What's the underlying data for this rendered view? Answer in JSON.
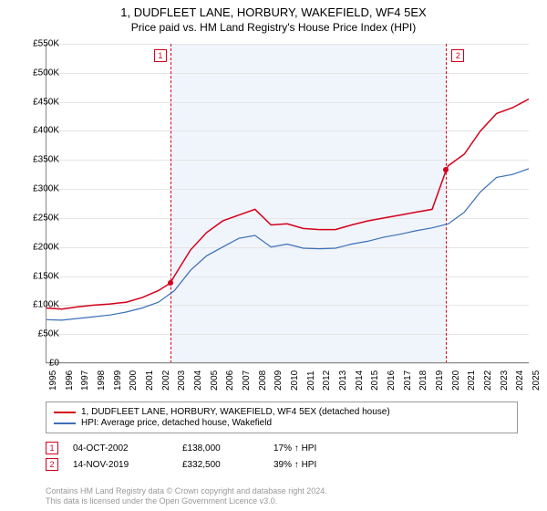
{
  "title": "1, DUDFLEET LANE, HORBURY, WAKEFIELD, WF4 5EX",
  "subtitle": "Price paid vs. HM Land Registry's House Price Index (HPI)",
  "chart": {
    "type": "line",
    "background_color": "#ffffff",
    "grid_color": "#e5e5e5",
    "shaded_color": "#f0f4fb",
    "axis_color": "#888888",
    "ylim": [
      0,
      550000
    ],
    "ytick_step": 50000,
    "ytick_labels": [
      "£0",
      "£50K",
      "£100K",
      "£150K",
      "£200K",
      "£250K",
      "£300K",
      "£350K",
      "£400K",
      "£450K",
      "£500K",
      "£550K"
    ],
    "xlim": [
      1995,
      2025
    ],
    "xtick_labels": [
      "1995",
      "1996",
      "1997",
      "1998",
      "1999",
      "2000",
      "2001",
      "2002",
      "2003",
      "2004",
      "2005",
      "2006",
      "2007",
      "2008",
      "2009",
      "2010",
      "2011",
      "2012",
      "2013",
      "2014",
      "2015",
      "2016",
      "2017",
      "2018",
      "2019",
      "2020",
      "2021",
      "2022",
      "2023",
      "2024",
      "2025"
    ],
    "series": [
      {
        "name": "property",
        "label": "1, DUDFLEET LANE, HORBURY, WAKEFIELD, WF4 5EX (detached house)",
        "color": "#d4001a",
        "line_width": 1.5,
        "data": [
          [
            1995,
            95000
          ],
          [
            1996,
            93000
          ],
          [
            1997,
            97000
          ],
          [
            1998,
            100000
          ],
          [
            1999,
            102000
          ],
          [
            2000,
            105000
          ],
          [
            2001,
            113000
          ],
          [
            2002,
            125000
          ],
          [
            2002.75,
            138000
          ],
          [
            2003,
            150000
          ],
          [
            2004,
            195000
          ],
          [
            2005,
            225000
          ],
          [
            2006,
            245000
          ],
          [
            2007,
            255000
          ],
          [
            2008,
            265000
          ],
          [
            2009,
            238000
          ],
          [
            2010,
            240000
          ],
          [
            2011,
            232000
          ],
          [
            2012,
            230000
          ],
          [
            2013,
            230000
          ],
          [
            2014,
            238000
          ],
          [
            2015,
            245000
          ],
          [
            2016,
            250000
          ],
          [
            2017,
            255000
          ],
          [
            2018,
            260000
          ],
          [
            2019,
            265000
          ],
          [
            2019.87,
            332500
          ],
          [
            2020,
            340000
          ],
          [
            2021,
            360000
          ],
          [
            2022,
            400000
          ],
          [
            2023,
            430000
          ],
          [
            2024,
            440000
          ],
          [
            2025,
            455000
          ]
        ]
      },
      {
        "name": "hpi",
        "label": "HPI: Average price, detached house, Wakefield",
        "color": "#3b6fb6",
        "line_width": 1.2,
        "data": [
          [
            1995,
            75000
          ],
          [
            1996,
            74000
          ],
          [
            1997,
            77000
          ],
          [
            1998,
            80000
          ],
          [
            1999,
            83000
          ],
          [
            2000,
            88000
          ],
          [
            2001,
            95000
          ],
          [
            2002,
            105000
          ],
          [
            2003,
            125000
          ],
          [
            2004,
            160000
          ],
          [
            2005,
            185000
          ],
          [
            2006,
            200000
          ],
          [
            2007,
            215000
          ],
          [
            2008,
            220000
          ],
          [
            2009,
            200000
          ],
          [
            2010,
            205000
          ],
          [
            2011,
            198000
          ],
          [
            2012,
            197000
          ],
          [
            2013,
            198000
          ],
          [
            2014,
            205000
          ],
          [
            2015,
            210000
          ],
          [
            2016,
            217000
          ],
          [
            2017,
            222000
          ],
          [
            2018,
            228000
          ],
          [
            2019,
            233000
          ],
          [
            2020,
            240000
          ],
          [
            2021,
            260000
          ],
          [
            2022,
            295000
          ],
          [
            2023,
            320000
          ],
          [
            2024,
            325000
          ],
          [
            2025,
            335000
          ]
        ]
      }
    ],
    "sale_markers": [
      {
        "num": "1",
        "x": 2002.75,
        "y": 138000,
        "color": "#d4001a"
      },
      {
        "num": "2",
        "x": 2019.87,
        "y": 332500,
        "color": "#d4001a"
      }
    ],
    "title_fontsize": 13,
    "label_fontsize": 10
  },
  "legend": {
    "items": [
      {
        "color": "#d4001a",
        "label": "1, DUDFLEET LANE, HORBURY, WAKEFIELD, WF4 5EX (detached house)"
      },
      {
        "color": "#3b6fb6",
        "label": "HPI: Average price, detached house, Wakefield"
      }
    ]
  },
  "sales": [
    {
      "num": "1",
      "color": "#d4001a",
      "date": "04-OCT-2002",
      "price": "£138,000",
      "pct": "17% ↑ HPI"
    },
    {
      "num": "2",
      "color": "#d4001a",
      "date": "14-NOV-2019",
      "price": "£332,500",
      "pct": "39% ↑ HPI"
    }
  ],
  "footer": {
    "line1": "Contains HM Land Registry data © Crown copyright and database right 2024.",
    "line2": "This data is licensed under the Open Government Licence v3.0."
  }
}
